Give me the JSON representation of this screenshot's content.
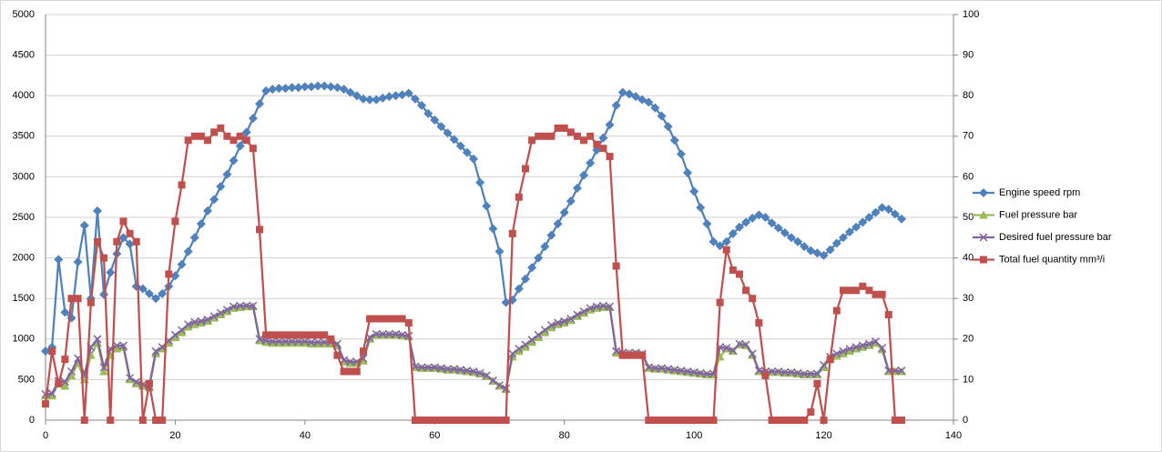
{
  "chart_data": {
    "type": "line",
    "x": [
      0,
      1,
      2,
      3,
      4,
      5,
      6,
      7,
      8,
      9,
      10,
      11,
      12,
      13,
      14,
      15,
      16,
      17,
      18,
      19,
      20,
      21,
      22,
      23,
      24,
      25,
      26,
      27,
      28,
      29,
      30,
      31,
      32,
      33,
      34,
      35,
      36,
      37,
      38,
      39,
      40,
      41,
      42,
      43,
      44,
      45,
      46,
      47,
      48,
      49,
      50,
      51,
      52,
      53,
      54,
      55,
      56,
      57,
      58,
      59,
      60,
      61,
      62,
      63,
      64,
      65,
      66,
      67,
      68,
      69,
      70,
      71,
      72,
      73,
      74,
      75,
      76,
      77,
      78,
      79,
      80,
      81,
      82,
      83,
      84,
      85,
      86,
      87,
      88,
      89,
      90,
      91,
      92,
      93,
      94,
      95,
      96,
      97,
      98,
      99,
      100,
      101,
      102,
      103,
      104,
      105,
      106,
      107,
      108,
      109,
      110,
      111,
      112,
      113,
      114,
      115,
      116,
      117,
      118,
      119,
      120,
      121,
      122,
      123,
      124,
      125,
      126,
      127,
      128,
      129,
      130,
      131,
      132
    ],
    "series": [
      {
        "name": "Engine speed rpm",
        "color": "#4f81bd",
        "marker": "diamond",
        "values": [
          850,
          900,
          1980,
          1330,
          1260,
          1950,
          2400,
          1500,
          2580,
          1550,
          1820,
          2050,
          2250,
          2170,
          1650,
          1620,
          1560,
          1500,
          1560,
          1650,
          1780,
          1920,
          2080,
          2250,
          2420,
          2580,
          2720,
          2880,
          3030,
          3200,
          3380,
          3550,
          3720,
          3900,
          4060,
          4080,
          4090,
          4090,
          4100,
          4100,
          4110,
          4110,
          4120,
          4120,
          4110,
          4100,
          4080,
          4040,
          4000,
          3960,
          3950,
          3950,
          3970,
          3990,
          4000,
          4010,
          4030,
          3960,
          3880,
          3780,
          3700,
          3620,
          3540,
          3460,
          3380,
          3300,
          3220,
          2930,
          2640,
          2360,
          2080,
          1450,
          1480,
          1620,
          1740,
          1880,
          2000,
          2140,
          2280,
          2420,
          2560,
          2700,
          2860,
          3020,
          3170,
          3330,
          3480,
          3640,
          3880,
          4040,
          4020,
          3990,
          3950,
          3920,
          3850,
          3750,
          3620,
          3450,
          3280,
          3050,
          2820,
          2620,
          2420,
          2200,
          2150,
          2200,
          2300,
          2380,
          2440,
          2490,
          2530,
          2500,
          2430,
          2370,
          2310,
          2250,
          2200,
          2140,
          2090,
          2060,
          2030,
          2100,
          2180,
          2250,
          2320,
          2380,
          2440,
          2500,
          2560,
          2620,
          2600,
          2540,
          2480
        ]
      },
      {
        "name": "Fuel pressure bar",
        "color": "#9bbb59",
        "marker": "triangle",
        "values": [
          300,
          300,
          450,
          420,
          550,
          700,
          500,
          800,
          950,
          600,
          800,
          880,
          900,
          500,
          450,
          420,
          400,
          820,
          880,
          950,
          1020,
          1080,
          1150,
          1180,
          1200,
          1220,
          1260,
          1300,
          1340,
          1380,
          1390,
          1400,
          1400,
          980,
          960,
          950,
          950,
          950,
          950,
          950,
          950,
          940,
          940,
          940,
          940,
          920,
          720,
          700,
          700,
          730,
          1000,
          1050,
          1050,
          1050,
          1050,
          1040,
          1030,
          650,
          640,
          640,
          640,
          630,
          620,
          620,
          610,
          600,
          590,
          570,
          540,
          480,
          420,
          380,
          780,
          850,
          900,
          960,
          1020,
          1080,
          1140,
          1180,
          1200,
          1230,
          1280,
          1320,
          1360,
          1380,
          1390,
          1390,
          830,
          820,
          820,
          820,
          810,
          640,
          630,
          630,
          620,
          610,
          600,
          590,
          580,
          570,
          560,
          560,
          780,
          880,
          850,
          930,
          920,
          800,
          600,
          590,
          590,
          590,
          580,
          580,
          570,
          560,
          560,
          560,
          650,
          750,
          790,
          820,
          850,
          880,
          900,
          920,
          950,
          870,
          600,
          600,
          600
        ]
      },
      {
        "name": "Desired fuel pressure bar",
        "color": "#8064a2",
        "marker": "cross",
        "values": [
          320,
          330,
          480,
          470,
          600,
          760,
          560,
          900,
          1000,
          650,
          880,
          920,
          920,
          520,
          470,
          440,
          420,
          850,
          900,
          980,
          1050,
          1110,
          1180,
          1210,
          1220,
          1240,
          1280,
          1320,
          1360,
          1400,
          1410,
          1410,
          1410,
          1000,
          980,
          970,
          970,
          970,
          970,
          970,
          970,
          960,
          960,
          960,
          960,
          940,
          740,
          720,
          720,
          760,
          1020,
          1060,
          1060,
          1060,
          1060,
          1050,
          1040,
          660,
          650,
          650,
          650,
          640,
          630,
          630,
          620,
          610,
          600,
          580,
          550,
          490,
          430,
          390,
          820,
          880,
          930,
          990,
          1050,
          1110,
          1170,
          1200,
          1220,
          1250,
          1300,
          1340,
          1380,
          1400,
          1410,
          1400,
          850,
          830,
          830,
          830,
          820,
          650,
          640,
          640,
          630,
          620,
          610,
          600,
          590,
          580,
          570,
          570,
          900,
          890,
          860,
          940,
          930,
          820,
          610,
          600,
          600,
          600,
          590,
          590,
          580,
          570,
          570,
          570,
          680,
          780,
          820,
          850,
          880,
          900,
          920,
          940,
          970,
          890,
          610,
          610,
          610
        ]
      },
      {
        "name": "Total fuel quantity mm³/i",
        "color": "#c0504d",
        "marker": "square",
        "axis": "y2",
        "values": [
          4,
          17,
          9,
          15,
          30,
          30,
          0,
          29,
          44,
          40,
          0,
          44,
          49,
          46,
          44,
          0,
          9,
          0,
          0,
          36,
          49,
          58,
          69,
          70,
          70,
          69,
          71,
          72,
          70,
          69,
          70,
          69,
          67,
          47,
          21,
          21,
          21,
          21,
          21,
          21,
          21,
          21,
          21,
          21,
          20,
          16,
          12,
          12,
          12,
          17,
          25,
          25,
          25,
          25,
          25,
          25,
          24,
          0,
          0,
          0,
          0,
          0,
          0,
          0,
          0,
          0,
          0,
          0,
          0,
          0,
          0,
          0,
          46,
          55,
          62,
          69,
          70,
          70,
          70,
          72,
          72,
          71,
          70,
          69,
          70,
          68,
          67,
          65,
          38,
          16,
          16,
          16,
          16,
          0,
          0,
          0,
          0,
          0,
          0,
          0,
          0,
          0,
          0,
          0,
          29,
          42,
          37,
          36,
          32,
          30,
          24,
          11,
          0,
          0,
          0,
          0,
          0,
          0,
          2,
          9,
          0,
          15,
          27,
          32,
          32,
          32,
          33,
          32,
          31,
          31,
          26,
          0,
          0
        ]
      }
    ],
    "xlim": [
      0,
      140
    ],
    "xticks": [
      0,
      20,
      40,
      60,
      80,
      100,
      120,
      140
    ],
    "ylim": [
      0,
      5000
    ],
    "yticks": [
      0,
      500,
      1000,
      1500,
      2000,
      2500,
      3000,
      3500,
      4000,
      4500,
      5000
    ],
    "y2lim": [
      0,
      100
    ],
    "y2ticks": [
      0,
      10,
      20,
      30,
      40,
      50,
      60,
      70,
      80,
      90,
      100
    ],
    "grid": true,
    "legend": "right"
  }
}
